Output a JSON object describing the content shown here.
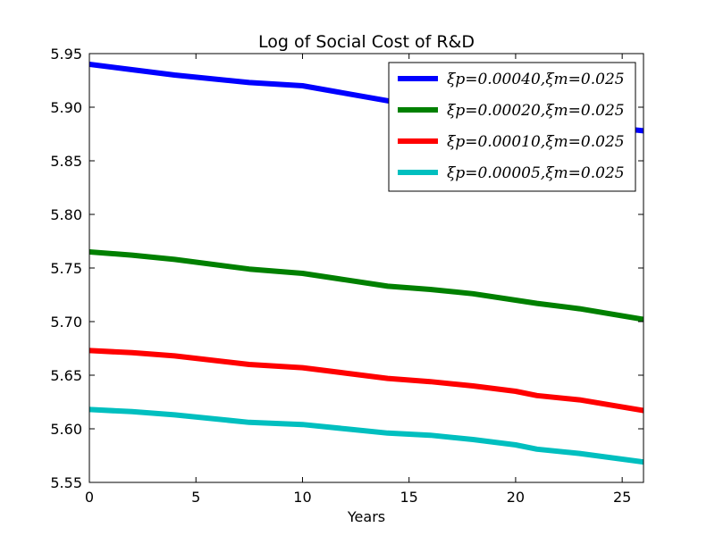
{
  "chart_data": {
    "type": "line",
    "title": "Log of Social Cost of R&D",
    "xlabel": "Years",
    "ylabel": "",
    "xlim": [
      0,
      26
    ],
    "ylim": [
      5.55,
      5.95
    ],
    "xticks": [
      0,
      5,
      10,
      15,
      20,
      25
    ],
    "yticks": [
      5.55,
      5.6,
      5.65,
      5.7,
      5.75,
      5.8,
      5.85,
      5.9,
      5.95
    ],
    "ytick_labels": [
      "5.55",
      "5.60",
      "5.65",
      "5.70",
      "5.75",
      "5.80",
      "5.85",
      "5.90",
      "5.95"
    ],
    "grid": false,
    "legend_position": "top-right",
    "series": [
      {
        "name": "ξp=0.00040,ξm=0.025",
        "color": "#0000ff",
        "x": [
          0,
          2,
          4,
          7.5,
          10,
          12,
          14,
          16,
          18,
          20,
          21,
          23,
          26
        ],
        "y": [
          5.94,
          5.935,
          5.93,
          5.923,
          5.92,
          5.913,
          5.906,
          5.9,
          5.895,
          5.89,
          5.887,
          5.884,
          5.878
        ]
      },
      {
        "name": "ξp=0.00020,ξm=0.025",
        "color": "#008000",
        "x": [
          0,
          2,
          4,
          7.5,
          10,
          12,
          14,
          16,
          18,
          20,
          21,
          23,
          26
        ],
        "y": [
          5.765,
          5.762,
          5.758,
          5.749,
          5.745,
          5.739,
          5.733,
          5.73,
          5.726,
          5.72,
          5.717,
          5.712,
          5.702
        ]
      },
      {
        "name": "ξp=0.00010,ξm=0.025",
        "color": "#ff0000",
        "x": [
          0,
          2,
          4,
          7.5,
          10,
          12,
          14,
          16,
          18,
          20,
          21,
          23,
          26
        ],
        "y": [
          5.673,
          5.671,
          5.668,
          5.66,
          5.657,
          5.652,
          5.647,
          5.644,
          5.64,
          5.635,
          5.631,
          5.627,
          5.617
        ]
      },
      {
        "name": "ξp=0.00005,ξm=0.025",
        "color": "#00bfbf",
        "x": [
          0,
          2,
          4,
          7.5,
          10,
          12,
          14,
          16,
          18,
          20,
          21,
          23,
          26
        ],
        "y": [
          5.618,
          5.616,
          5.613,
          5.606,
          5.604,
          5.6,
          5.596,
          5.594,
          5.59,
          5.585,
          5.581,
          5.577,
          5.569
        ]
      }
    ]
  }
}
